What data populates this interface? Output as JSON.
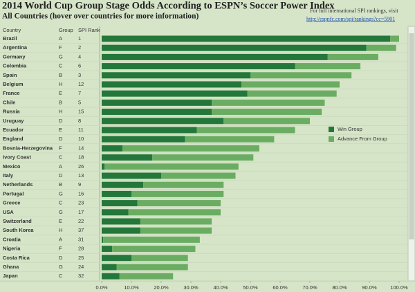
{
  "chart_data": {
    "type": "bar",
    "orientation": "horizontal",
    "stacked": true,
    "title": "2014 World Cup Group Stage Odds According to ESPN’s Soccer Power Index",
    "subtitle": "All Countries (hover over countries for more information)",
    "note": "For full international SPI rankings, visit",
    "link": "http://espnfc.com/spi/rankings?cc=5901",
    "columns": [
      "Country",
      "Group",
      "SPI Rank"
    ],
    "categories": [
      "Brazil",
      "Argentina",
      "Germany",
      "Colombia",
      "Spain",
      "Belgium",
      "France",
      "Chile",
      "Russia",
      "Uruguay",
      "Ecuador",
      "England",
      "Bosnia-Herzegovina",
      "Ivory Coast",
      "Mexico",
      "Italy",
      "Netherlands",
      "Portugal",
      "Greece",
      "USA",
      "Switzerland",
      "South Korea",
      "Croatia",
      "Nigeria",
      "Costa Rica",
      "Ghana",
      "Japan"
    ],
    "groups": [
      "A",
      "F",
      "G",
      "C",
      "B",
      "H",
      "E",
      "B",
      "H",
      "D",
      "E",
      "D",
      "F",
      "C",
      "A",
      "D",
      "B",
      "G",
      "C",
      "G",
      "E",
      "H",
      "A",
      "F",
      "D",
      "G",
      "C"
    ],
    "spi_ranks": [
      1,
      2,
      4,
      6,
      3,
      12,
      7,
      5,
      15,
      8,
      11,
      10,
      14,
      18,
      26,
      13,
      9,
      16,
      23,
      17,
      22,
      37,
      31,
      28,
      25,
      24,
      32
    ],
    "series": [
      {
        "name": "Win Group",
        "color": "#24773a",
        "values": [
          97,
          89,
          76,
          65,
          50,
          47,
          49,
          37,
          37,
          41,
          32,
          28,
          7,
          17,
          1,
          20,
          14,
          10,
          12,
          9,
          13,
          13,
          0.5,
          3.5,
          10,
          5,
          6
        ]
      },
      {
        "name": "Advance From Group",
        "color": "#6aad62",
        "values": [
          3,
          10,
          17,
          22,
          34,
          33,
          30,
          38,
          37,
          29,
          33,
          30,
          46,
          34,
          45,
          25,
          27,
          31,
          28,
          31,
          24,
          24,
          32.5,
          28,
          19,
          24,
          18
        ]
      }
    ],
    "xlim": [
      0,
      100
    ],
    "xticks": [
      {
        "value": 0,
        "label": "0.0%"
      },
      {
        "value": 10,
        "label": "10.0%"
      },
      {
        "value": 20,
        "label": "20.0%"
      },
      {
        "value": 30,
        "label": "30.0%"
      },
      {
        "value": 40,
        "label": "40.0%"
      },
      {
        "value": 50,
        "label": "50.0%"
      },
      {
        "value": 60,
        "label": "60.0%"
      },
      {
        "value": 70,
        "label": "70.0%"
      },
      {
        "value": 80,
        "label": "80.0%"
      },
      {
        "value": 90,
        "label": "90.0%"
      },
      {
        "value": 100,
        "label": "100.0%"
      }
    ],
    "legend": "right"
  }
}
